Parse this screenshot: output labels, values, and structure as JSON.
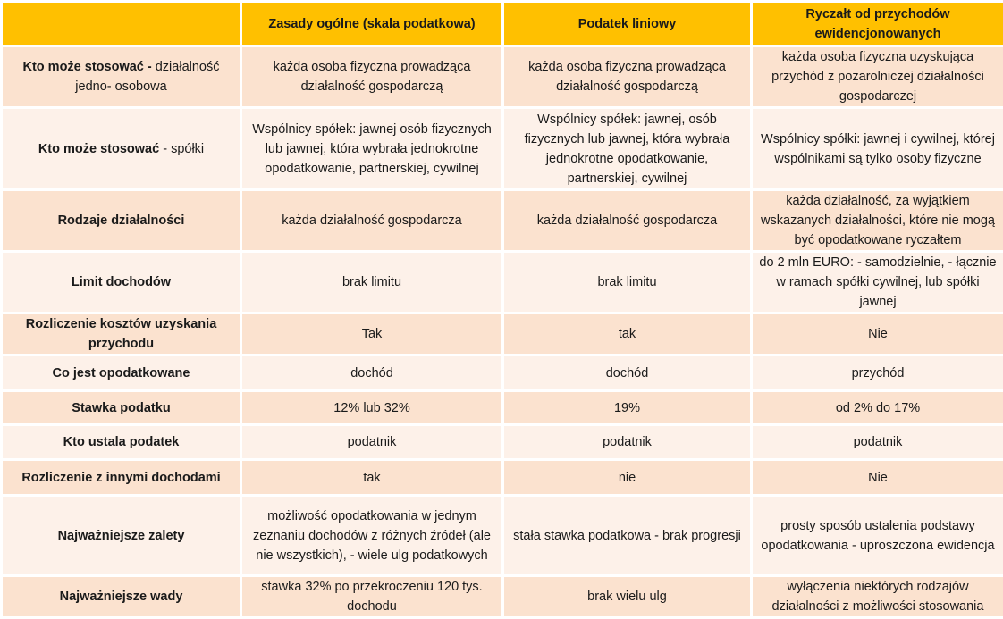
{
  "colors": {
    "header": "#FFC000",
    "row_odd": "#FBE2CF",
    "row_even": "#FDF1E9"
  },
  "headers": [
    "",
    "Zasady ogólne (skala podatkowa)",
    "Podatek liniowy",
    "Ryczałt od przychodów ewidencjonowanych"
  ],
  "rows": [
    {
      "label_bold": "Kto może stosować -",
      "label_normal": " działalność jedno- osobowa",
      "cells": [
        "każda osoba fizyczna prowadząca działalność gospodarczą",
        "każda osoba fizyczna prowadząca działalność gospodarczą",
        "każda osoba fizyczna uzyskująca przychód z pozarolniczej działalności gospodarczej"
      ]
    },
    {
      "label_bold": "Kto może stosować",
      "label_normal": " - spółki",
      "cells": [
        "Wspólnicy spółek: jawnej osób fizycznych lub jawnej, która wybrała jednokrotne opodatkowanie, partnerskiej, cywilnej",
        "Wspólnicy spółek: jawnej, osób fizycznych lub jawnej, która wybrała jednokrotne opodatkowanie, partnerskiej, cywilnej",
        "Wspólnicy spółki: jawnej i cywilnej, której wspólnikami są tylko osoby fizyczne"
      ]
    },
    {
      "label_bold": "Rodzaje działalności",
      "label_normal": "",
      "cells": [
        "każda działalność gospodarcza",
        "każda działalność gospodarcza",
        "każda działalność, za wyjątkiem wskazanych działalności, które nie mogą być opodatkowane ryczałtem"
      ]
    },
    {
      "label_bold": "Limit dochodów",
      "label_normal": "",
      "cells": [
        "brak limitu",
        "brak limitu",
        "do 2 mln EURO: - samodzielnie, - łącznie w ramach spółki cywilnej, lub spółki jawnej"
      ]
    },
    {
      "label_bold": "Rozliczenie kosztów uzyskania przychodu",
      "label_normal": "",
      "cells": [
        "Tak",
        "tak",
        "Nie"
      ]
    },
    {
      "label_bold": "Co jest opodatkowane",
      "label_normal": "",
      "cells": [
        "dochód",
        "dochód",
        "przychód"
      ]
    },
    {
      "label_bold": "Stawka podatku",
      "label_normal": "",
      "cells": [
        "12% lub 32%",
        "19%",
        "od 2% do 17%"
      ]
    },
    {
      "label_bold": "Kto ustala podatek",
      "label_normal": "",
      "cells": [
        "podatnik",
        "podatnik",
        "podatnik"
      ]
    },
    {
      "label_bold": "Rozliczenie z innymi dochodami",
      "label_normal": "",
      "cells": [
        "tak",
        "nie",
        "Nie"
      ]
    },
    {
      "label_bold": "Najważniejsze zalety",
      "label_normal": "",
      "cells": [
        "możliwość opodatkowania w jednym zeznaniu dochodów z różnych źródeł (ale nie wszystkich), - wiele ulg podatkowych",
        "stała stawka podatkowa - brak progresji",
        "prosty sposób ustalenia podstawy opodatkowania - uproszczona ewidencja"
      ]
    },
    {
      "label_bold": "Najważniejsze wady",
      "label_normal": "",
      "cells": [
        "stawka 32% po przekroczeniu 120 tys. dochodu",
        "brak wielu ulg",
        "wyłączenia niektórych rodzajów działalności z możliwości stosowania"
      ]
    }
  ]
}
